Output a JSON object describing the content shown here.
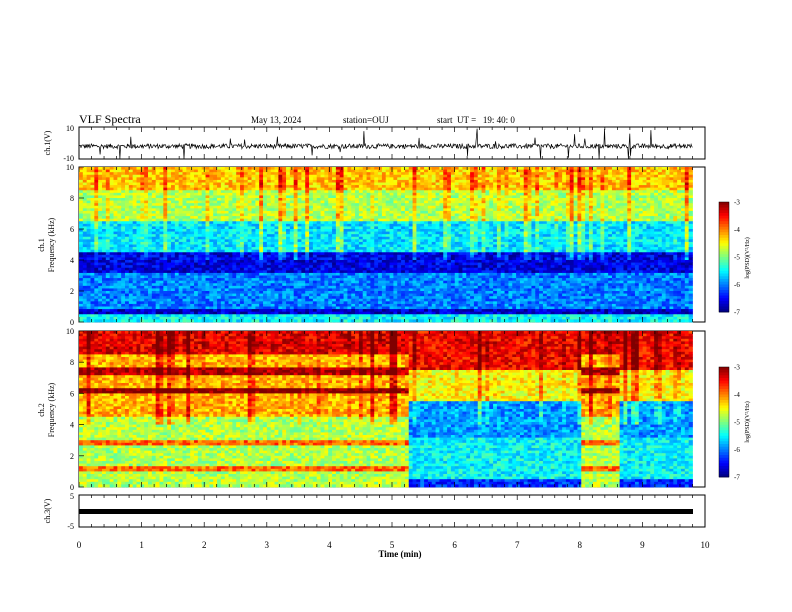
{
  "header": {
    "title": "VLF Spectra",
    "date": "May 13, 2024",
    "station": "station=OUJ",
    "start": "start  UT =   19: 40: 0"
  },
  "colors": {
    "spectrogram_scale": [
      "#00007f",
      "#0000ff",
      "#007fff",
      "#00ffff",
      "#7fff7f",
      "#ffff00",
      "#ff7f00",
      "#ff0000",
      "#7f0000"
    ]
  },
  "chart_data": [
    {
      "type": "line",
      "name": "waveform-ch1",
      "ylabel": "ch.1(V)",
      "xlim": [
        0,
        10
      ],
      "ylim": [
        -10,
        10
      ],
      "yticks": [
        "10",
        "-10"
      ],
      "series": [
        {
          "description_level": "noisy signal around -2 V with spikes to about +10 and -10 V",
          "baseline": -2,
          "range": [
            -10,
            10
          ]
        }
      ]
    },
    {
      "type": "heatmap",
      "name": "spectrogram-ch1",
      "ylabel": "ch.1\nFrequency (kHz)",
      "xlim": [
        0,
        10
      ],
      "ylim": [
        0,
        10
      ],
      "x_end": 9.8,
      "yticks": [
        "0",
        "2",
        "4",
        "6",
        "8",
        "10"
      ],
      "colorbar": {
        "label": "log(PSD)(V²/Hz)",
        "ticks": [
          "-3",
          "-4",
          "-5",
          "-6",
          "-7"
        ],
        "range": [
          -7,
          -3
        ]
      },
      "bands": [
        {
          "f": [
            0,
            0.5
          ],
          "level": -5.5
        },
        {
          "f": [
            0.5,
            0.8
          ],
          "level": -6.7
        },
        {
          "f": [
            0.8,
            3.2
          ],
          "level": -6.0
        },
        {
          "f": [
            3.2,
            4.5
          ],
          "level": -6.6
        },
        {
          "f": [
            4.5,
            6.5
          ],
          "level": -5.6
        },
        {
          "f": [
            6.5,
            8.5
          ],
          "level": -4.8
        },
        {
          "f": [
            8.5,
            10
          ],
          "level": -4.3
        }
      ]
    },
    {
      "type": "heatmap",
      "name": "spectrogram-ch2",
      "ylabel": "ch.2\nFrequency (kHz)",
      "xlim": [
        0,
        10
      ],
      "ylim": [
        0,
        10
      ],
      "x_end": 9.8,
      "yticks": [
        "0",
        "2",
        "4",
        "6",
        "8",
        "10"
      ],
      "colorbar": {
        "label": "log(PSD)(V²/Hz)",
        "ticks": [
          "-3",
          "-4",
          "-5",
          "-6",
          "-7"
        ],
        "range": [
          -7,
          -3
        ]
      },
      "segments": [
        {
          "t": [
            0,
            5.25
          ],
          "state": "high"
        },
        {
          "t": [
            5.25,
            8.0
          ],
          "state": "low"
        },
        {
          "t": [
            8.0,
            8.65
          ],
          "state": "high"
        },
        {
          "t": [
            8.65,
            9.8
          ],
          "state": "low"
        }
      ]
    },
    {
      "type": "line",
      "name": "waveform-ch3",
      "ylabel": "ch.3(V)",
      "xlim": [
        0,
        10
      ],
      "ylim": [
        -5,
        5
      ],
      "yticks": [
        "5",
        "-5"
      ],
      "series": [
        {
          "baseline": -1.3
        }
      ]
    }
  ],
  "xaxis": {
    "label": "Time (min)",
    "ticks": [
      "0",
      "1",
      "2",
      "3",
      "4",
      "5",
      "6",
      "7",
      "8",
      "9",
      "10"
    ]
  }
}
